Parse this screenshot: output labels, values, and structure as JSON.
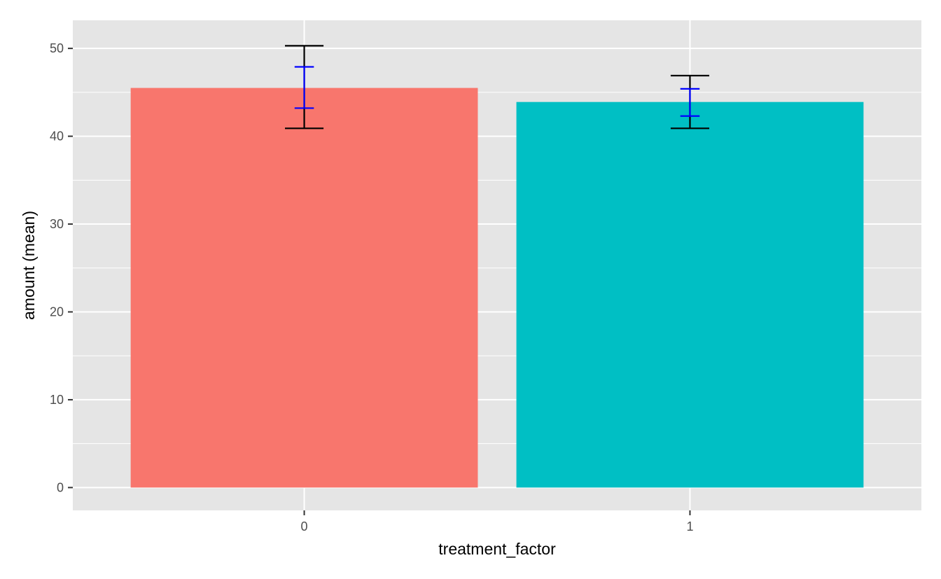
{
  "chart_data": {
    "type": "bar",
    "title": "",
    "xlabel": "treatment_factor",
    "ylabel": "amount (mean)",
    "categories": [
      "0",
      "1"
    ],
    "values": [
      45.5,
      43.9
    ],
    "ylim": [
      -2.6,
      53.2
    ],
    "yticks": [
      0,
      10,
      20,
      30,
      40,
      50
    ],
    "grid": true,
    "legend": "none",
    "bar_colors": [
      "#F8766D",
      "#00BFC4"
    ],
    "background_color": "#E5E5E5",
    "error_bars_outer": {
      "color": "#000000",
      "lower": [
        40.9,
        40.9
      ],
      "upper": [
        50.3,
        46.9
      ]
    },
    "error_bars_inner": {
      "color": "#0000FF",
      "lower": [
        43.2,
        42.3
      ],
      "upper": [
        47.9,
        45.4
      ]
    }
  }
}
